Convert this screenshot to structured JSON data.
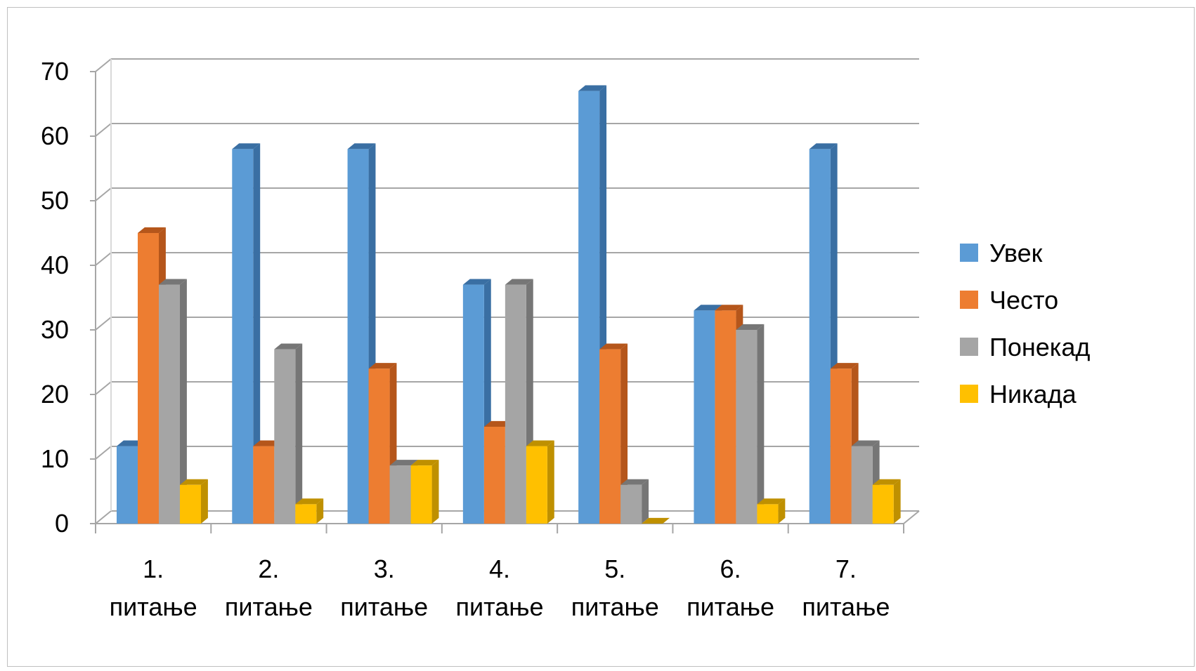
{
  "chart_data": {
    "type": "bar",
    "title": "",
    "xlabel": "",
    "ylabel": "",
    "ylim": [
      0,
      70
    ],
    "yticks": [
      "0",
      "10",
      "20",
      "30",
      "40",
      "50",
      "60",
      "70"
    ],
    "grid": true,
    "legend_position": "right",
    "categories": [
      [
        "1.",
        "питање"
      ],
      [
        "2.",
        "питање"
      ],
      [
        "3.",
        "питање"
      ],
      [
        "4.",
        "питање"
      ],
      [
        "5.",
        "питање"
      ],
      [
        "6.",
        "питање"
      ],
      [
        "7.",
        "питање"
      ]
    ],
    "series": [
      {
        "name": "Увек",
        "color": "#5b9bd5",
        "dark": "#3a6fa3",
        "values": [
          12,
          58,
          58,
          37,
          67,
          33,
          58
        ]
      },
      {
        "name": "Често",
        "color": "#ed7d31",
        "dark": "#b5561b",
        "values": [
          45,
          12,
          24,
          15,
          27,
          33,
          24
        ]
      },
      {
        "name": "Понекад",
        "color": "#a5a5a5",
        "dark": "#767676",
        "values": [
          37,
          27,
          9,
          37,
          6,
          30,
          12
        ]
      },
      {
        "name": "Никада",
        "color": "#ffc000",
        "dark": "#bf9000",
        "values": [
          6,
          3,
          9,
          12,
          0,
          3,
          6
        ]
      }
    ]
  }
}
